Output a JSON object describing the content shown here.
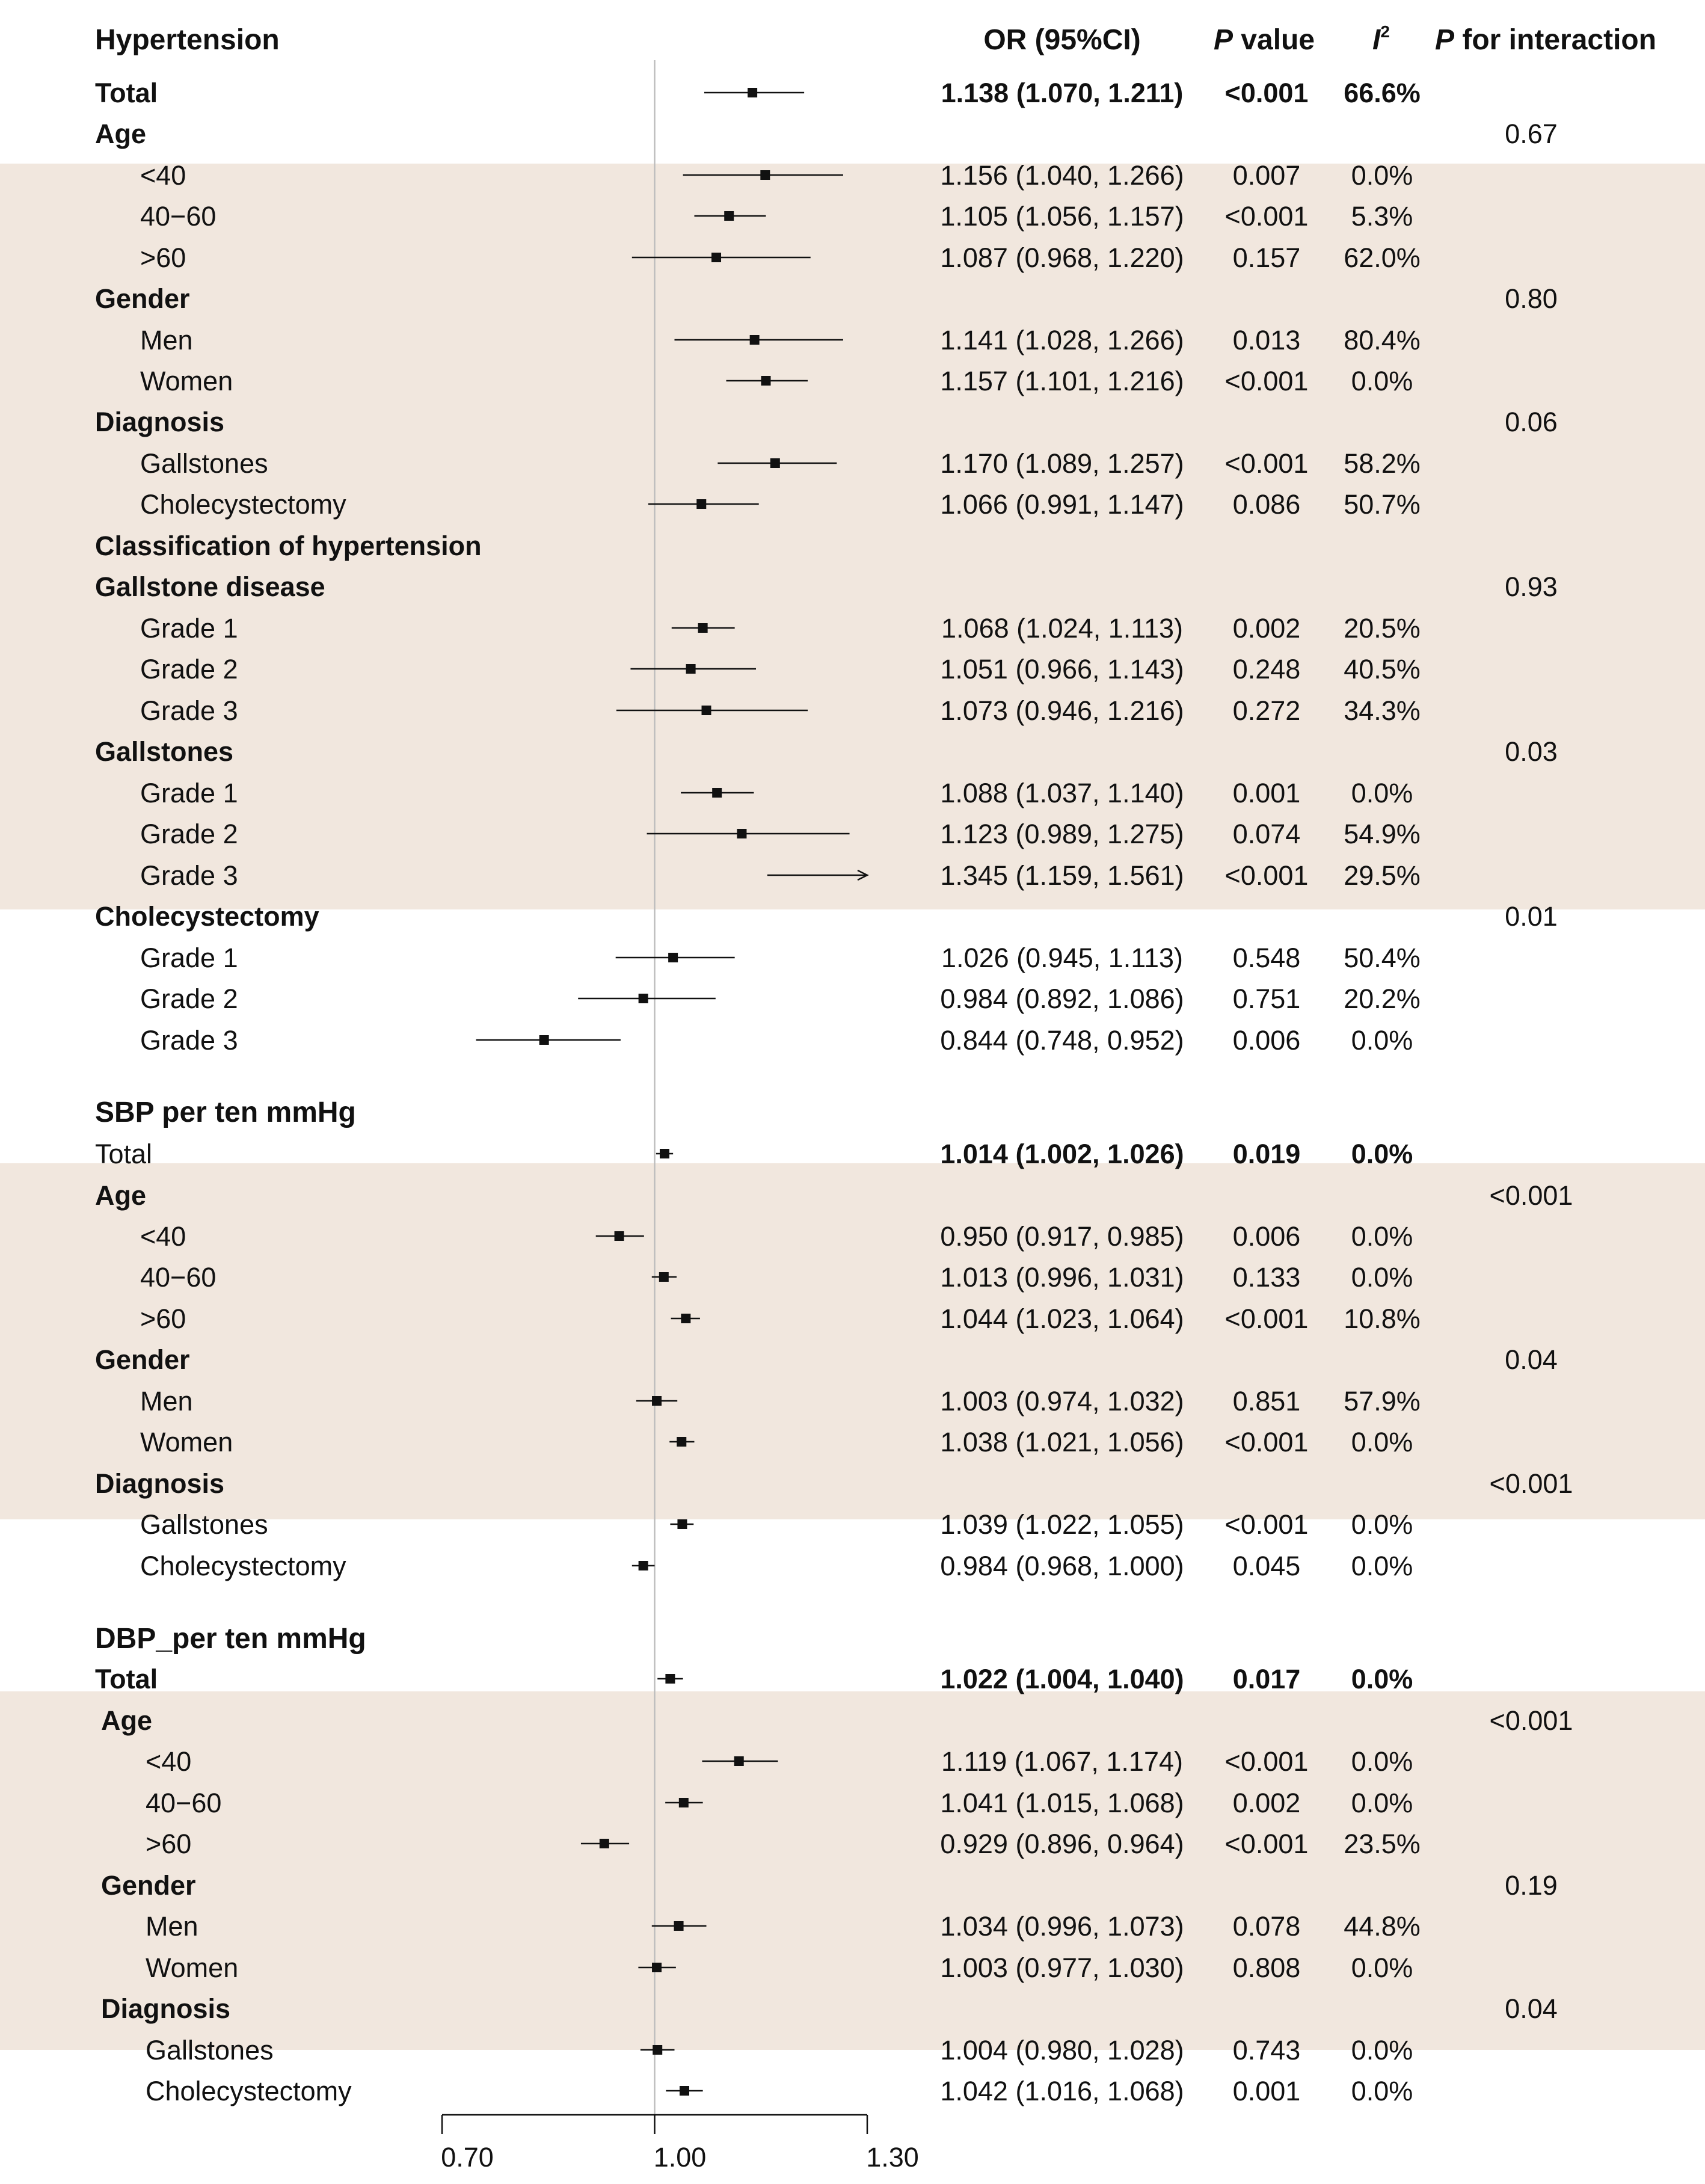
{
  "colors": {
    "band": "#f1e7de",
    "mark": "#111111",
    "refline": "#bdbdbd",
    "text": "#111111"
  },
  "header": {
    "title": "Hypertension",
    "or_col": "OR (95%CI)",
    "p_col_italic": "P",
    "p_col_rest": " value",
    "i2_col_letter": "I",
    "i2_col_sup": "2",
    "pint_col_italic": "P",
    "pint_col_rest": " for interaction"
  },
  "chart_data": {
    "type": "forest",
    "xscale": "linear",
    "xlim": [
      0.7,
      1.3
    ],
    "ref_value": 1.0,
    "xtick_labels": [
      "0.70",
      "1.00",
      "1.30"
    ],
    "xtick_values": [
      0.7,
      1.0,
      1.3
    ],
    "rows": [
      {
        "label": "Total",
        "style": "bold",
        "or": 1.138,
        "lo": 1.07,
        "hi": 1.211,
        "or_text": "1.138 (1.070, 1.211)",
        "p": "<0.001",
        "i2": "66.6%",
        "p_int": ""
      },
      {
        "label": "Age",
        "style": "group",
        "p_int": "0.67"
      },
      {
        "label": "<40",
        "style": "sub",
        "or": 1.156,
        "lo": 1.04,
        "hi": 1.266,
        "or_text": "1.156 (1.040, 1.266)",
        "p": "0.007",
        "i2": "0.0%"
      },
      {
        "label": "40−60",
        "style": "sub",
        "or": 1.105,
        "lo": 1.056,
        "hi": 1.157,
        "or_text": "1.105 (1.056, 1.157)",
        "p": "<0.001",
        "i2": "5.3%"
      },
      {
        "label": ">60",
        "style": "sub",
        "or": 1.087,
        "lo": 0.968,
        "hi": 1.22,
        "or_text": "1.087 (0.968, 1.220)",
        "p": "0.157",
        "i2": "62.0%"
      },
      {
        "label": "Gender",
        "style": "group",
        "p_int": "0.80"
      },
      {
        "label": "Men",
        "style": "sub",
        "or": 1.141,
        "lo": 1.028,
        "hi": 1.266,
        "or_text": "1.141 (1.028, 1.266)",
        "p": "0.013",
        "i2": "80.4%"
      },
      {
        "label": "Women",
        "style": "sub",
        "or": 1.157,
        "lo": 1.101,
        "hi": 1.216,
        "or_text": "1.157 (1.101, 1.216)",
        "p": "<0.001",
        "i2": "0.0%"
      },
      {
        "label": "Diagnosis",
        "style": "group",
        "p_int": "0.06"
      },
      {
        "label": "Gallstones",
        "style": "sub",
        "or": 1.17,
        "lo": 1.089,
        "hi": 1.257,
        "or_text": "1.170 (1.089, 1.257)",
        "p": "<0.001",
        "i2": "58.2%"
      },
      {
        "label": "Cholecystectomy",
        "style": "sub",
        "or": 1.066,
        "lo": 0.991,
        "hi": 1.147,
        "or_text": "1.066 (0.991, 1.147)",
        "p": "0.086",
        "i2": "50.7%"
      },
      {
        "label": "Classification of hypertension",
        "style": "group"
      },
      {
        "label": "Gallstone disease",
        "style": "group",
        "p_int": "0.93"
      },
      {
        "label": "Grade 1",
        "style": "sub",
        "or": 1.068,
        "lo": 1.024,
        "hi": 1.113,
        "or_text": "1.068 (1.024, 1.113)",
        "p": "0.002",
        "i2": "20.5%"
      },
      {
        "label": "Grade 2",
        "style": "sub",
        "or": 1.051,
        "lo": 0.966,
        "hi": 1.143,
        "or_text": "1.051 (0.966, 1.143)",
        "p": "0.248",
        "i2": "40.5%"
      },
      {
        "label": "Grade 3",
        "style": "sub",
        "or": 1.073,
        "lo": 0.946,
        "hi": 1.216,
        "or_text": "1.073 (0.946, 1.216)",
        "p": "0.272",
        "i2": "34.3%"
      },
      {
        "label": "Gallstones",
        "style": "group",
        "p_int": "0.03"
      },
      {
        "label": "Grade 1",
        "style": "sub",
        "or": 1.088,
        "lo": 1.037,
        "hi": 1.14,
        "or_text": "1.088 (1.037, 1.140)",
        "p": "0.001",
        "i2": "0.0%"
      },
      {
        "label": "Grade 2",
        "style": "sub",
        "or": 1.123,
        "lo": 0.989,
        "hi": 1.275,
        "or_text": "1.123 (0.989, 1.275)",
        "p": "0.074",
        "i2": "54.9%"
      },
      {
        "label": "Grade 3",
        "style": "sub",
        "or": 1.345,
        "lo": 1.159,
        "hi": 1.561,
        "or_text": "1.345 (1.159, 1.561)",
        "p": "<0.001",
        "i2": "29.5%",
        "arrow": true
      },
      {
        "label": "Cholecystectomy",
        "style": "group",
        "p_int": "0.01"
      },
      {
        "label": "Grade 1",
        "style": "sub",
        "or": 1.026,
        "lo": 0.945,
        "hi": 1.113,
        "or_text": "1.026 (0.945, 1.113)",
        "p": "0.548",
        "i2": "50.4%"
      },
      {
        "label": "Grade 2",
        "style": "sub",
        "or": 0.984,
        "lo": 0.892,
        "hi": 1.086,
        "or_text": "0.984 (0.892, 1.086)",
        "p": "0.751",
        "i2": "20.2%"
      },
      {
        "label": "Grade 3",
        "style": "sub",
        "or": 0.844,
        "lo": 0.748,
        "hi": 0.952,
        "or_text": "0.844 (0.748, 0.952)",
        "p": "0.006",
        "i2": "0.0%"
      },
      {
        "label": "SBP per ten mmHg",
        "style": "section"
      },
      {
        "label": "Total",
        "style": "bold-plain",
        "or": 1.014,
        "lo": 1.002,
        "hi": 1.026,
        "or_text": "1.014 (1.002, 1.026)",
        "p": "0.019",
        "i2": "0.0%"
      },
      {
        "label": "Age",
        "style": "group",
        "p_int": "<0.001"
      },
      {
        "label": "<40",
        "style": "sub",
        "or": 0.95,
        "lo": 0.917,
        "hi": 0.985,
        "or_text": "0.950 (0.917, 0.985)",
        "p": "0.006",
        "i2": "0.0%"
      },
      {
        "label": "40−60",
        "style": "sub",
        "or": 1.013,
        "lo": 0.996,
        "hi": 1.031,
        "or_text": "1.013 (0.996, 1.031)",
        "p": "0.133",
        "i2": "0.0%"
      },
      {
        "label": ">60",
        "style": "sub",
        "or": 1.044,
        "lo": 1.023,
        "hi": 1.064,
        "or_text": "1.044 (1.023, 1.064)",
        "p": "<0.001",
        "i2": "10.8%"
      },
      {
        "label": "Gender",
        "style": "group",
        "p_int": "0.04"
      },
      {
        "label": "Men",
        "style": "sub",
        "or": 1.003,
        "lo": 0.974,
        "hi": 1.032,
        "or_text": "1.003 (0.974, 1.032)",
        "p": "0.851",
        "i2": "57.9%"
      },
      {
        "label": "Women",
        "style": "sub",
        "or": 1.038,
        "lo": 1.021,
        "hi": 1.056,
        "or_text": "1.038 (1.021, 1.056)",
        "p": "<0.001",
        "i2": "0.0%"
      },
      {
        "label": "Diagnosis",
        "style": "group",
        "p_int": "<0.001"
      },
      {
        "label": "Gallstones",
        "style": "sub",
        "or": 1.039,
        "lo": 1.022,
        "hi": 1.055,
        "or_text": "1.039 (1.022, 1.055)",
        "p": "<0.001",
        "i2": "0.0%"
      },
      {
        "label": "Cholecystectomy",
        "style": "sub",
        "or": 0.984,
        "lo": 0.968,
        "hi": 1.0,
        "or_text": "0.984 (0.968, 1.000)",
        "p": "0.045",
        "i2": "0.0%"
      },
      {
        "label": "DBP_per ten mmHg",
        "style": "section"
      },
      {
        "label": "Total",
        "style": "bold",
        "or": 1.022,
        "lo": 1.004,
        "hi": 1.04,
        "or_text": "1.022 (1.004, 1.040)",
        "p": "0.017",
        "i2": "0.0%"
      },
      {
        "label": "Age",
        "style": "group2",
        "p_int": "<0.001"
      },
      {
        "label": "<40",
        "style": "sub2",
        "or": 1.119,
        "lo": 1.067,
        "hi": 1.174,
        "or_text": "1.119 (1.067, 1.174)",
        "p": "<0.001",
        "i2": "0.0%"
      },
      {
        "label": "40−60",
        "style": "sub2",
        "or": 1.041,
        "lo": 1.015,
        "hi": 1.068,
        "or_text": "1.041 (1.015, 1.068)",
        "p": "0.002",
        "i2": "0.0%"
      },
      {
        "label": ">60",
        "style": "sub2",
        "or": 0.929,
        "lo": 0.896,
        "hi": 0.964,
        "or_text": "0.929 (0.896, 0.964)",
        "p": "<0.001",
        "i2": "23.5%"
      },
      {
        "label": "Gender",
        "style": "group2",
        "p_int": "0.19"
      },
      {
        "label": "Men",
        "style": "sub2",
        "or": 1.034,
        "lo": 0.996,
        "hi": 1.073,
        "or_text": "1.034 (0.996, 1.073)",
        "p": "0.078",
        "i2": "44.8%"
      },
      {
        "label": "Women",
        "style": "sub2",
        "or": 1.003,
        "lo": 0.977,
        "hi": 1.03,
        "or_text": "1.003 (0.977, 1.030)",
        "p": "0.808",
        "i2": "0.0%"
      },
      {
        "label": "Diagnosis",
        "style": "group2",
        "p_int": "0.04"
      },
      {
        "label": "Gallstones",
        "style": "sub2",
        "or": 1.004,
        "lo": 0.98,
        "hi": 1.028,
        "or_text": "1.004 (0.980, 1.028)",
        "p": "0.743",
        "i2": "0.0%"
      },
      {
        "label": "Cholecystectomy",
        "style": "sub2",
        "or": 1.042,
        "lo": 1.016,
        "hi": 1.068,
        "or_text": "1.042 (1.016, 1.068)",
        "p": "0.001",
        "i2": "0.0%"
      }
    ]
  }
}
